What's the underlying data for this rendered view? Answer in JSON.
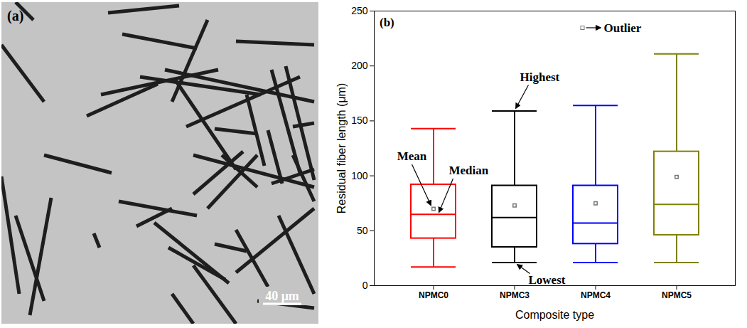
{
  "chart_data": {
    "type": "box",
    "panel_label": "(b)",
    "x_label": "Composite type",
    "y_label": "Residual fiber length (μm)",
    "categories": [
      "NPMC0",
      "NPMC3",
      "NPMC4",
      "NPMC5"
    ],
    "colors": [
      "#ff0000",
      "#000000",
      "#0000ff",
      "#808000"
    ],
    "min": [
      17,
      21,
      21,
      21
    ],
    "q1": [
      43,
      35,
      38,
      46
    ],
    "median": [
      65,
      62,
      57,
      74
    ],
    "q3": [
      92,
      91,
      91,
      122
    ],
    "max": [
      143,
      159,
      164,
      211
    ],
    "mean": [
      70,
      73,
      75,
      99
    ],
    "ylim": [
      0,
      250
    ],
    "yticks": [
      0,
      50,
      100,
      150,
      200,
      250
    ],
    "grid": false,
    "annotations": {
      "outlier": "Outlier",
      "mean": "Mean",
      "median": "Median",
      "highest": "Highest",
      "lowest": "Lowest"
    }
  },
  "image_panel": {
    "panel_label": "(a)",
    "scale_bar": "40 μm"
  }
}
